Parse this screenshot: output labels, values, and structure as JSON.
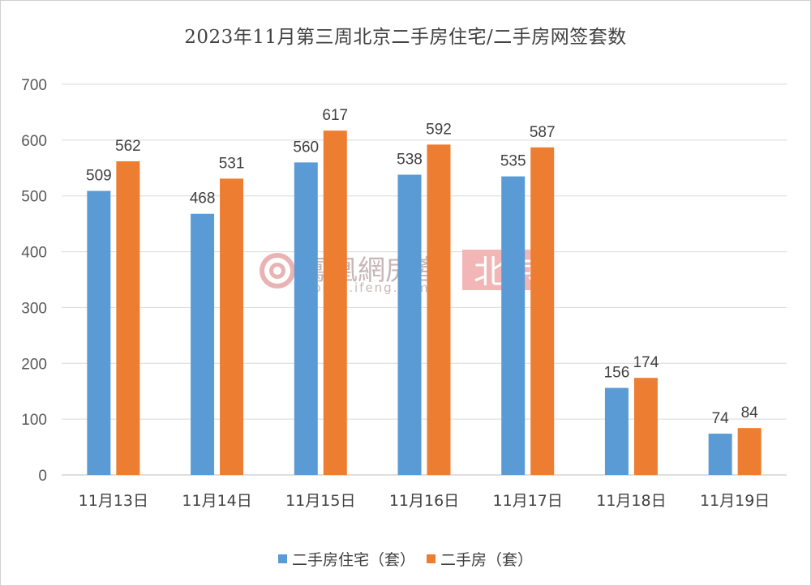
{
  "chart_data": {
    "type": "bar",
    "title": "2023年11月第三周北京二手房住宅/二手房网签套数",
    "categories": [
      "11月13日",
      "11月14日",
      "11月15日",
      "11月16日",
      "11月17日",
      "11月18日",
      "11月19日"
    ],
    "series": [
      {
        "name": "二手房住宅（套）",
        "color": "#5b9bd5",
        "values": [
          509,
          468,
          560,
          538,
          535,
          156,
          74
        ]
      },
      {
        "name": "二手房（套）",
        "color": "#ed7d31",
        "values": [
          562,
          531,
          617,
          592,
          587,
          174,
          84
        ]
      }
    ],
    "ylim": [
      0,
      700
    ],
    "yticks": [
      0,
      100,
      200,
      300,
      400,
      500,
      600,
      700
    ],
    "grid": true,
    "legend": "bottom",
    "data_labels": true
  },
  "watermark": {
    "brand": "鳳凰網房產",
    "url": "house.ifeng.com",
    "city": "北京"
  }
}
